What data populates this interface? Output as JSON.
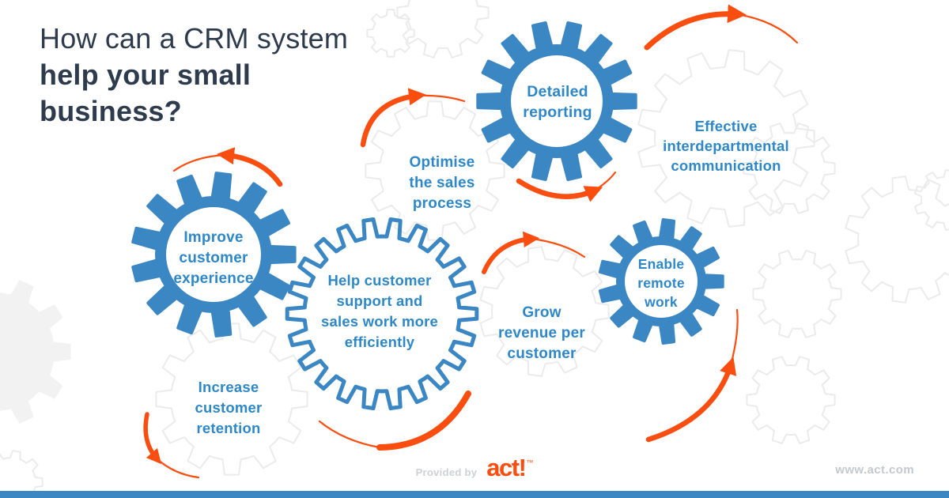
{
  "header": {
    "title_line1": "How can a CRM system",
    "title_line2": "help your small",
    "title_line3": "business?"
  },
  "benefits": [
    {
      "id": "improve-customer-experience",
      "gear": "solid-blue",
      "label": "Improve customer experience",
      "lines": [
        "Improve",
        "customer",
        "experience"
      ]
    },
    {
      "id": "increase-customer-retention",
      "gear": "faint-outline",
      "label": "Increase customer retention",
      "lines": [
        "Increase",
        "customer",
        "retention"
      ]
    },
    {
      "id": "help-customer-support",
      "gear": "blue-outline",
      "label": "Help customer support and sales work more efficiently",
      "lines": [
        "Help customer",
        "support and",
        "sales work more",
        "efficiently"
      ]
    },
    {
      "id": "optimise-the-sales-process",
      "gear": "faint-outline",
      "label": "Optimise the sales process",
      "lines": [
        "Optimise",
        "the sales",
        "process"
      ]
    },
    {
      "id": "detailed-reporting",
      "gear": "solid-blue",
      "label": "Detailed reporting",
      "lines": [
        "Detailed",
        "reporting"
      ]
    },
    {
      "id": "effective-interdepartmental-communication",
      "gear": "faint-outline",
      "label": "Effective interdepartmental communication",
      "lines": [
        "Effective",
        "interdepartmental",
        "communication"
      ]
    },
    {
      "id": "grow-revenue-per-customer",
      "gear": "faint-outline",
      "label": "Grow revenue per customer",
      "lines": [
        "Grow",
        "revenue per",
        "customer"
      ]
    },
    {
      "id": "enable-remote-work",
      "gear": "solid-blue",
      "label": "Enable remote work",
      "lines": [
        "Enable",
        "remote",
        "work"
      ]
    }
  ],
  "footer": {
    "provided_by": "Provided by",
    "brand": "act!",
    "trademark": "™",
    "website": "www.act.com"
  },
  "colors": {
    "gear_blue": "#3b87c4",
    "text_blue": "#2e87c6",
    "orange": "#f94e10",
    "title_dark": "#2d3b4c",
    "faint_gear_line": "#ebebeb",
    "faint_gear_fill": "#f2f2f2",
    "footer_gray": "#cdd1d4",
    "website_gray": "#c3c9cd",
    "bottom_bar": "#3b87c4"
  }
}
